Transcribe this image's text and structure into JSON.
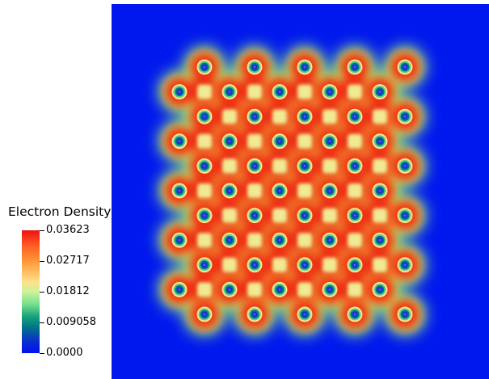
{
  "chart_data": {
    "type": "heatmap",
    "title": "",
    "colorbar": {
      "title": "Electron Density",
      "range": [
        0.0,
        0.03623
      ],
      "ticks": [
        {
          "value": 0.03623,
          "label": "0.03623"
        },
        {
          "value": 0.02717,
          "label": "0.02717"
        },
        {
          "value": 0.01812,
          "label": "0.01812"
        },
        {
          "value": 0.009058,
          "label": "0.009058"
        },
        {
          "value": 0.0,
          "label": "0.0000"
        }
      ],
      "colormap": "rainbow (blue-green-yellow-red)"
    },
    "lattice": {
      "rows": 11,
      "columns": 10,
      "description": "checkerboard of atomic sites; dark-blue/cyan cores surrounded by red high-density rings, yellow-green interstitial squares, zero density (blue) background"
    }
  }
}
